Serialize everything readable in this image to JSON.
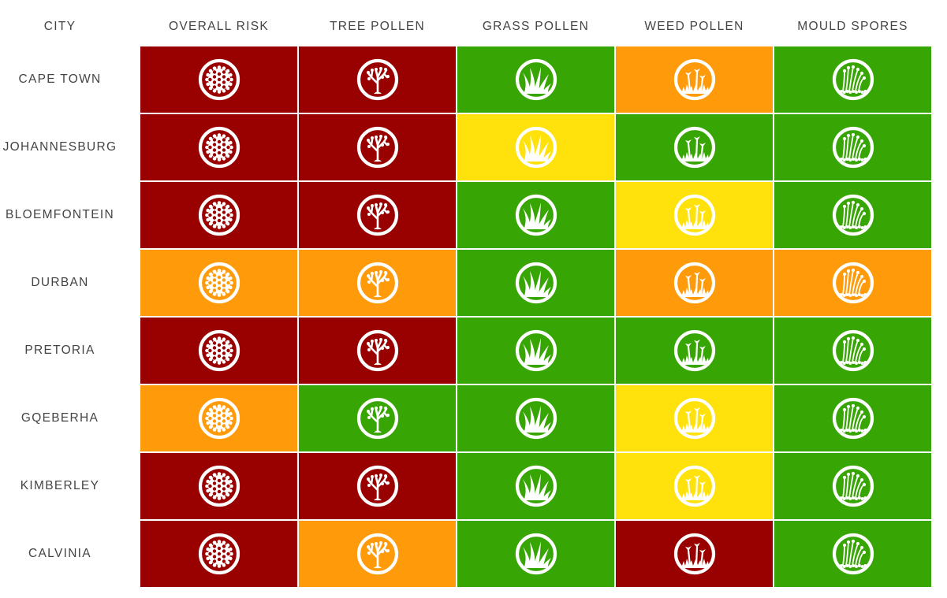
{
  "chart_data": {
    "type": "heatmap",
    "corner_label": "CITY",
    "columns": [
      "OVERALL RISK",
      "TREE POLLEN",
      "GRASS POLLEN",
      "WEED POLLEN",
      "MOULD SPORES"
    ],
    "column_icons": [
      "pollen-grain-icon",
      "tree-icon",
      "grass-icon",
      "weed-flower-icon",
      "mould-spores-icon"
    ],
    "rows": [
      "CAPE TOWN",
      "JOHANNESBURG",
      "BLOEMFONTEIN",
      "DURBAN",
      "PRETORIA",
      "GQEBERHA",
      "KIMBERLEY",
      "CALVINIA"
    ],
    "levels": {
      "very-high": "#990000",
      "high": "#ff9b0a",
      "moderate": "#ffe20c",
      "low": "#37a605"
    },
    "values": [
      [
        "very-high",
        "very-high",
        "low",
        "high",
        "low"
      ],
      [
        "very-high",
        "very-high",
        "moderate",
        "low",
        "low"
      ],
      [
        "very-high",
        "very-high",
        "low",
        "moderate",
        "low"
      ],
      [
        "high",
        "high",
        "low",
        "high",
        "high"
      ],
      [
        "very-high",
        "very-high",
        "low",
        "low",
        "low"
      ],
      [
        "high",
        "low",
        "low",
        "moderate",
        "low"
      ],
      [
        "very-high",
        "very-high",
        "low",
        "moderate",
        "low"
      ],
      [
        "very-high",
        "high",
        "low",
        "very-high",
        "low"
      ]
    ]
  }
}
